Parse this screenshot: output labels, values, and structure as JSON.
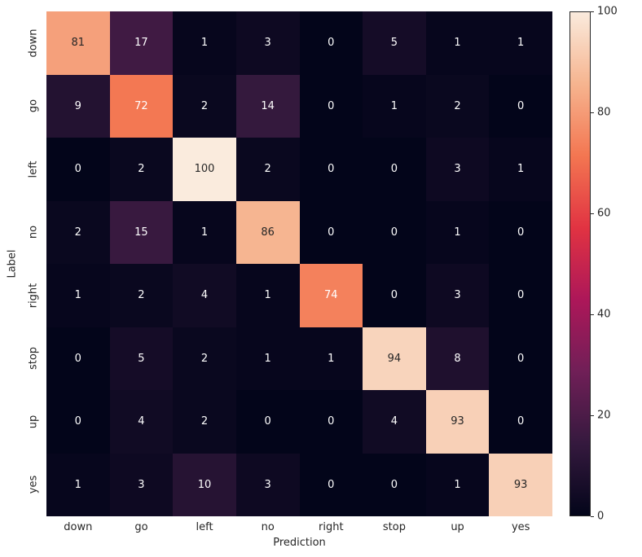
{
  "chart_data": {
    "type": "heatmap",
    "xlabel": "Prediction",
    "ylabel": "Label",
    "categories": [
      "down",
      "go",
      "left",
      "no",
      "right",
      "stop",
      "up",
      "yes"
    ],
    "matrix": [
      [
        81,
        17,
        1,
        3,
        0,
        5,
        1,
        1
      ],
      [
        9,
        72,
        2,
        14,
        0,
        1,
        2,
        0
      ],
      [
        0,
        2,
        100,
        2,
        0,
        0,
        3,
        1
      ],
      [
        2,
        15,
        1,
        86,
        0,
        0,
        1,
        0
      ],
      [
        1,
        2,
        4,
        1,
        74,
        0,
        3,
        0
      ],
      [
        0,
        5,
        2,
        1,
        1,
        94,
        8,
        0
      ],
      [
        0,
        4,
        2,
        0,
        0,
        4,
        93,
        0
      ],
      [
        1,
        3,
        10,
        3,
        0,
        0,
        1,
        93
      ]
    ],
    "vmin": 0,
    "vmax": 100,
    "colorbar_ticks": [
      0,
      20,
      40,
      60,
      80,
      100
    ],
    "legend_position": "right-colorbar",
    "grid": false,
    "colormap": {
      "name": "rocket",
      "stops": [
        "#03051A",
        "#35193E",
        "#701F57",
        "#AD1759",
        "#E13342",
        "#F37651",
        "#F6B48F",
        "#FAEBDD"
      ]
    },
    "annotation_text_colors": {
      "light": "#FFFFFF",
      "dark": "#262626"
    }
  }
}
